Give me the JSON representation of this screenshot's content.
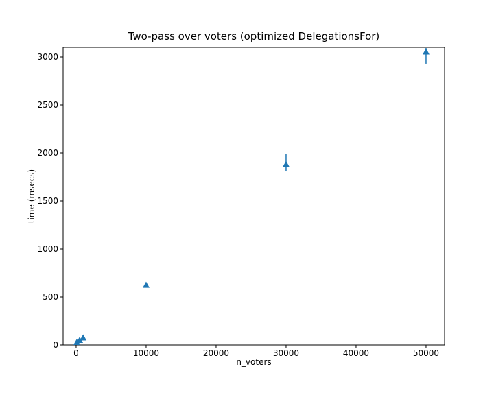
{
  "page": {
    "background": "#ffffff"
  },
  "chart_data": {
    "type": "scatter",
    "title": "Two-pass over voters (optimized DelegationsFor)",
    "xlabel": "n_voters",
    "ylabel": "time (msecs)",
    "marker": "triangle_up",
    "marker_color": "#1f77b4",
    "errorbar_color": "#1f77b4",
    "axis_color": "#000000",
    "grid": false,
    "legend": "none",
    "xlim": [
      -1860,
      52650
    ],
    "ylim": [
      0,
      3100
    ],
    "xticks": [
      0,
      10000,
      20000,
      30000,
      40000,
      50000
    ],
    "yticks": [
      0,
      500,
      1000,
      1500,
      2000,
      2500,
      3000
    ],
    "points": [
      {
        "x": 100,
        "y": 32,
        "yerr_low": 28,
        "yerr_high": 36
      },
      {
        "x": 500,
        "y": 54,
        "yerr_low": 49,
        "yerr_high": 59
      },
      {
        "x": 1000,
        "y": 79,
        "yerr_low": 71,
        "yerr_high": 87
      },
      {
        "x": 10000,
        "y": 628,
        "yerr_low": 605,
        "yerr_high": 652
      },
      {
        "x": 30000,
        "y": 1886,
        "yerr_low": 1807,
        "yerr_high": 1986
      },
      {
        "x": 50000,
        "y": 3057,
        "yerr_low": 2929,
        "yerr_high": 3093
      }
    ]
  }
}
